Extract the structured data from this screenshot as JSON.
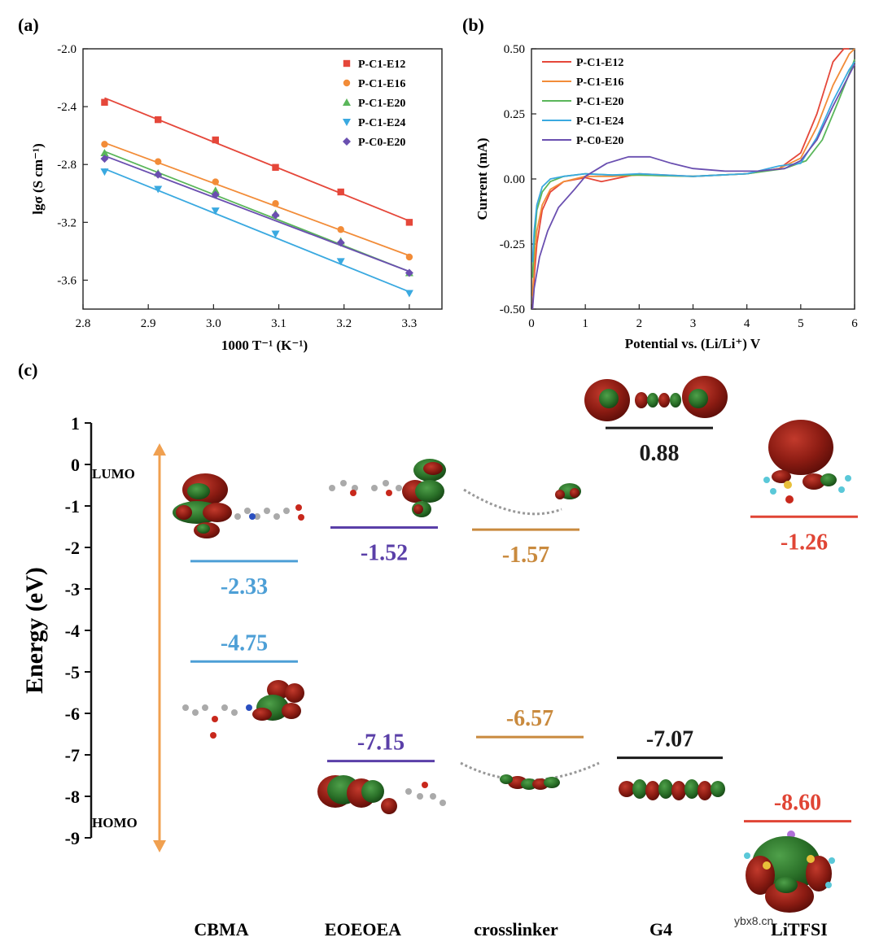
{
  "chart_data": [
    {
      "panel_label": "(a)",
      "type": "scatter",
      "xlabel": "1000 T⁻¹ (K⁻¹)",
      "ylabel": "lgσ (S cm⁻¹)",
      "xlim": [
        2.8,
        3.35
      ],
      "ylim": [
        -3.8,
        -2.0
      ],
      "x_ticks": [
        "2.8",
        "2.9",
        "3.0",
        "3.1",
        "3.2",
        "3.3"
      ],
      "y_ticks": [
        "-2.0",
        "-2.4",
        "-2.8",
        "-3.2",
        "-3.6"
      ],
      "x_tick_values": [
        2.8,
        2.9,
        3.0,
        3.1,
        3.2,
        3.3
      ],
      "y_tick_values": [
        -2.0,
        -2.4,
        -2.8,
        -3.2,
        -3.6
      ],
      "legend_position": "top-right",
      "x": [
        2.833,
        2.915,
        3.003,
        3.095,
        3.195,
        3.3
      ],
      "series": [
        {
          "name": "P-C1-E12",
          "color": "#e5473a",
          "marker": "square",
          "values": [
            -2.37,
            -2.49,
            -2.63,
            -2.82,
            -2.99,
            -3.2
          ],
          "fit": [
            -2.34,
            -3.19
          ]
        },
        {
          "name": "P-C1-E16",
          "color": "#f28c38",
          "marker": "circle",
          "values": [
            -2.66,
            -2.78,
            -2.92,
            -3.07,
            -3.25,
            -3.44
          ],
          "fit": [
            -2.65,
            -3.43
          ]
        },
        {
          "name": "P-C1-E20",
          "color": "#5ab65a",
          "marker": "triangle-up",
          "values": [
            -2.72,
            -2.86,
            -2.98,
            -3.14,
            -3.33,
            -3.55
          ],
          "fit": [
            -2.71,
            -3.54
          ]
        },
        {
          "name": "P-C1-E24",
          "color": "#3aa9e0",
          "marker": "triangle-down",
          "values": [
            -2.85,
            -2.97,
            -3.12,
            -3.28,
            -3.47,
            -3.69
          ],
          "fit": [
            -2.83,
            -3.68
          ]
        },
        {
          "name": "P-C0-E20",
          "color": "#6a4fb0",
          "marker": "diamond",
          "values": [
            -2.76,
            -2.87,
            -3.01,
            -3.15,
            -3.34,
            -3.55
          ],
          "fit": [
            -2.74,
            -3.54
          ]
        }
      ]
    },
    {
      "panel_label": "(b)",
      "type": "line",
      "xlabel": "Potential vs. (Li/Li⁺) V",
      "ylabel": "Current (mA)",
      "xlim": [
        0,
        6
      ],
      "ylim": [
        -0.5,
        0.5
      ],
      "x_ticks": [
        "0",
        "1",
        "2",
        "3",
        "4",
        "5",
        "6"
      ],
      "y_ticks": [
        "0.50",
        "0.25",
        "0.00",
        "-0.25",
        "-0.50"
      ],
      "x_tick_values": [
        0,
        1,
        2,
        3,
        4,
        5,
        6
      ],
      "y_tick_values": [
        0.5,
        0.25,
        0,
        -0.25,
        -0.5
      ],
      "legend_position": "top-left",
      "series": [
        {
          "name": "P-C1-E12",
          "color": "#e5473a",
          "x": [
            0.02,
            0.05,
            0.1,
            0.2,
            0.35,
            0.6,
            1.0,
            1.3,
            2.0,
            3.0,
            4.0,
            4.6,
            5.0,
            5.3,
            5.6,
            5.8,
            5.9
          ],
          "values": [
            -0.5,
            -0.38,
            -0.25,
            -0.12,
            -0.05,
            -0.01,
            0.005,
            -0.01,
            0.02,
            0.01,
            0.02,
            0.04,
            0.1,
            0.25,
            0.45,
            0.5,
            0.5
          ]
        },
        {
          "name": "P-C1-E16",
          "color": "#f28c38",
          "x": [
            0.02,
            0.05,
            0.1,
            0.2,
            0.35,
            0.6,
            1.0,
            1.5,
            2.0,
            3.0,
            4.0,
            4.6,
            5.0,
            5.3,
            5.6,
            5.9,
            6.0
          ],
          "values": [
            -0.45,
            -0.33,
            -0.2,
            -0.1,
            -0.04,
            -0.01,
            0.01,
            0.01,
            0.015,
            0.01,
            0.02,
            0.04,
            0.08,
            0.2,
            0.36,
            0.48,
            0.5
          ]
        },
        {
          "name": "P-C1-E20",
          "color": "#5ab65a",
          "x": [
            0.02,
            0.05,
            0.1,
            0.2,
            0.35,
            0.6,
            1.0,
            1.5,
            2.0,
            3.0,
            4.0,
            4.7,
            5.1,
            5.4,
            5.7,
            5.95,
            6.0
          ],
          "values": [
            -0.38,
            -0.25,
            -0.12,
            -0.05,
            -0.01,
            0.01,
            0.02,
            0.015,
            0.015,
            0.01,
            0.02,
            0.04,
            0.07,
            0.15,
            0.3,
            0.43,
            0.46
          ]
        },
        {
          "name": "P-C1-E24",
          "color": "#3aa9e0",
          "x": [
            0.02,
            0.05,
            0.1,
            0.2,
            0.35,
            0.6,
            1.0,
            1.5,
            2.0,
            3.0,
            4.0,
            4.6,
            5.0,
            5.3,
            5.6,
            5.9,
            6.0
          ],
          "values": [
            -0.32,
            -0.2,
            -0.1,
            -0.03,
            0.0,
            0.01,
            0.02,
            0.015,
            0.02,
            0.01,
            0.02,
            0.05,
            0.06,
            0.16,
            0.3,
            0.42,
            0.45
          ]
        },
        {
          "name": "P-C0-E20",
          "color": "#6a4fb0",
          "x": [
            0.02,
            0.05,
            0.15,
            0.3,
            0.5,
            0.8,
            1.0,
            1.4,
            1.8,
            2.2,
            2.6,
            3.0,
            3.6,
            4.2,
            4.7,
            5.0,
            5.3,
            5.6,
            5.9,
            6.0
          ],
          "values": [
            -0.5,
            -0.42,
            -0.3,
            -0.2,
            -0.11,
            -0.04,
            0.01,
            0.06,
            0.085,
            0.085,
            0.06,
            0.04,
            0.03,
            0.03,
            0.04,
            0.07,
            0.15,
            0.28,
            0.4,
            0.44
          ]
        }
      ]
    },
    {
      "panel_label": "(c)",
      "type": "energy-level",
      "ylabel": "Energy (eV)",
      "ylim": [
        -9,
        1
      ],
      "y_ticks": [
        "1",
        "0",
        "-1",
        "-2",
        "-3",
        "-4",
        "-5",
        "-6",
        "-7",
        "-8",
        "-9"
      ],
      "y_tick_values": [
        1,
        0,
        -1,
        -2,
        -3,
        -4,
        -5,
        -6,
        -7,
        -8,
        -9
      ],
      "arrow_labels": {
        "top": "LUMO",
        "bottom": "HOMO"
      },
      "molecules": [
        {
          "name": "CBMA",
          "color": "#4d9fd6",
          "lumo": -2.33,
          "homo": -4.75,
          "lumo_label": "-2.33",
          "homo_label": "-4.75"
        },
        {
          "name": "EOEOEA",
          "color": "#5a3fa8",
          "lumo": -1.52,
          "homo": -7.15,
          "lumo_label": "-1.52",
          "homo_label": "-7.15"
        },
        {
          "name": "crosslinker",
          "color": "#c98a3e",
          "lumo": -1.57,
          "homo": -6.57,
          "lumo_label": "-1.57",
          "homo_label": "-6.57"
        },
        {
          "name": "G4",
          "color": "#1a1a1a",
          "lumo": 0.88,
          "homo": -7.07,
          "lumo_label": "0.88",
          "homo_label": "-7.07"
        },
        {
          "name": "LiTFSI",
          "color": "#e04535",
          "lumo": -1.26,
          "homo": -8.6,
          "lumo_label": "-1.26",
          "homo_label": "-8.60"
        }
      ]
    }
  ],
  "watermark": "ybx8.cn"
}
